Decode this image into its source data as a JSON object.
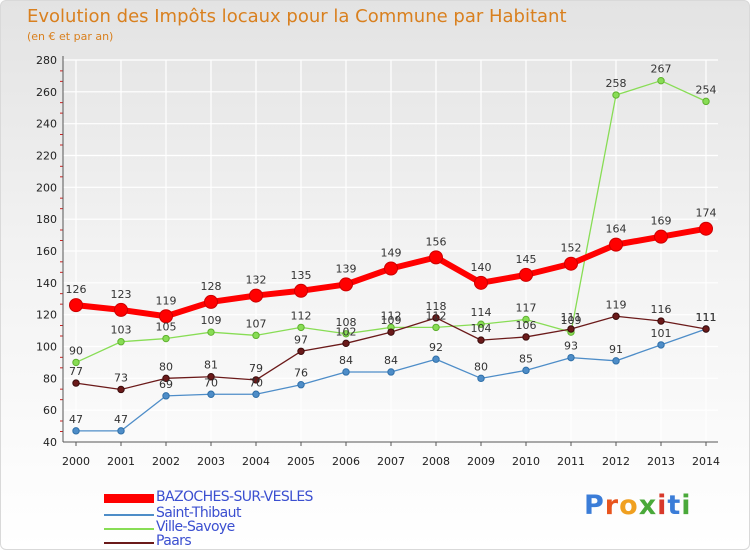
{
  "title": "Evolution des Impôts locaux pour la Commune par Habitant",
  "subtitle": "(en € et par an)",
  "logo": {
    "text": "Proxiti",
    "letters": [
      "P",
      "r",
      "o",
      "x",
      "i",
      "t",
      "i"
    ],
    "colors": [
      "#3b7dd8",
      "#e8541e",
      "#f0a020",
      "#4aa93a",
      "#d8392b",
      "#3b7dd8",
      "#4aa93a"
    ]
  },
  "chart_data": {
    "type": "line",
    "title": "Evolution des Impôts locaux pour la Commune par Habitant",
    "subtitle": "(en € et par an)",
    "xlabel": "",
    "ylabel": "",
    "ylim": [
      40,
      280
    ],
    "ytick_labels": [
      "40",
      "60",
      "80",
      "100",
      "120",
      "140",
      "160",
      "180",
      "200",
      "220",
      "240",
      "260",
      "280"
    ],
    "categories": [
      "2000",
      "2001",
      "2002",
      "2003",
      "2004",
      "2005",
      "2006",
      "2007",
      "2008",
      "2009",
      "2010",
      "2011",
      "2012",
      "2013",
      "2014"
    ],
    "grid": true,
    "legend_position": "bottom-left",
    "series": [
      {
        "name": "BAZOCHES-SUR-VESLES",
        "color": "#ff0000",
        "label_color": "#333333",
        "values": [
          126,
          123,
          119,
          128,
          132,
          135,
          139,
          149,
          156,
          140,
          145,
          152,
          164,
          169,
          174
        ],
        "labels": [
          "126",
          "123",
          "119",
          "128",
          "132",
          "135",
          "139",
          "149",
          "156",
          "140",
          "145",
          "152",
          "164",
          "169",
          "174"
        ]
      },
      {
        "name": "Saint-Thibaut",
        "color": "#4e8dc8",
        "label_color": "#333333",
        "values": [
          47,
          47,
          69,
          70,
          70,
          76,
          84,
          84,
          92,
          80,
          85,
          93,
          91,
          101,
          111
        ],
        "labels": [
          "47",
          "47",
          "69",
          "70",
          "70",
          "76",
          "84",
          "84",
          "92",
          "80",
          "85",
          "93",
          "91",
          "101",
          "111"
        ]
      },
      {
        "name": "Ville-Savoye",
        "color": "#88dd55",
        "label_color": "#333333",
        "values": [
          90,
          103,
          105,
          109,
          107,
          112,
          108,
          112,
          112,
          114,
          117,
          109,
          258,
          267,
          254
        ],
        "labels": [
          "90",
          "103",
          "105",
          "109",
          "107",
          "112",
          "108",
          "112",
          "112",
          "114",
          "117",
          "109",
          "258",
          "267",
          "254"
        ]
      },
      {
        "name": "Paars",
        "color": "#6b1a1a",
        "label_color": "#333333",
        "values": [
          77,
          73,
          80,
          81,
          79,
          97,
          102,
          109,
          118,
          104,
          106,
          111,
          119,
          116,
          111
        ],
        "labels": [
          "77",
          "73",
          "80",
          "81",
          "79",
          "97",
          "102",
          "109",
          "118",
          "104",
          "106",
          "111",
          "119",
          "116",
          "111"
        ]
      }
    ]
  }
}
